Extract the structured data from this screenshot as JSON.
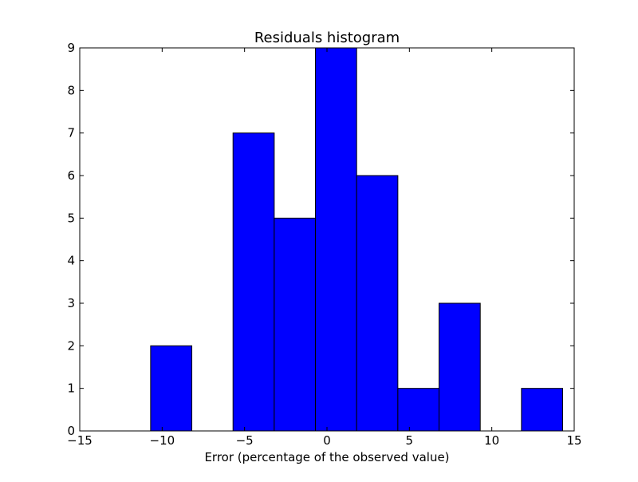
{
  "chart_data": {
    "type": "bar",
    "title": "Residuals histogram",
    "xlabel": "Error (percentage of the observed value)",
    "ylabel": "",
    "xlim": [
      -15,
      15
    ],
    "ylim": [
      0,
      9
    ],
    "xticks": [
      -15,
      -10,
      -5,
      0,
      5,
      10,
      15
    ],
    "xtick_labels": [
      "−15",
      "−10",
      "−5",
      "0",
      "5",
      "10",
      "15"
    ],
    "yticks": [
      0,
      1,
      2,
      3,
      4,
      5,
      6,
      7,
      8,
      9
    ],
    "ytick_labels": [
      "0",
      "1",
      "2",
      "3",
      "4",
      "5",
      "6",
      "7",
      "8",
      "9"
    ],
    "bin_edges": [
      -10.7,
      -8.2,
      -5.7,
      -3.2,
      -0.7,
      1.8,
      4.3,
      6.8,
      9.3,
      11.8,
      14.3
    ],
    "counts": [
      2,
      0,
      7,
      5,
      9,
      6,
      1,
      3,
      0,
      1
    ],
    "bar_color": "#0000ff",
    "edge_color": "#000000",
    "grid": false
  }
}
